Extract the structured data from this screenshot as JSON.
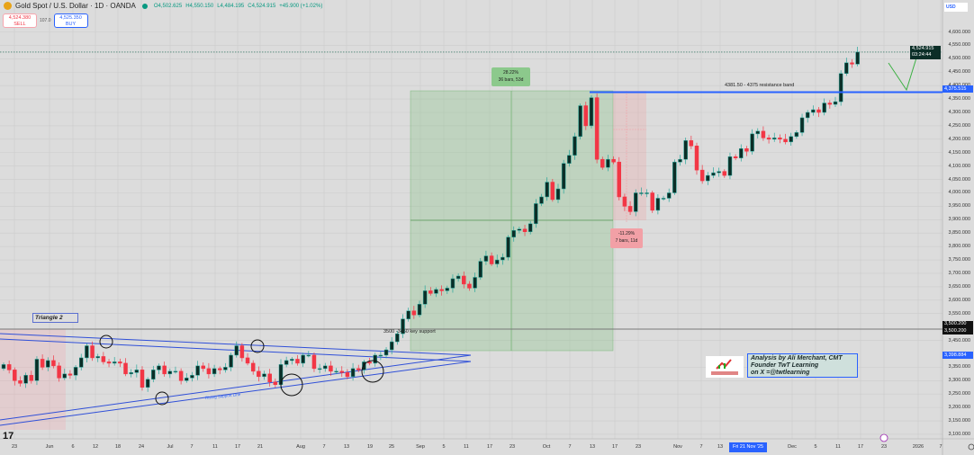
{
  "header": {
    "title": "Gold Spot / U.S. Dollar · 1D · OANDA",
    "open": "O4,502.625",
    "high": "H4,550.150",
    "low": "L4,484.195",
    "close": "C4,524.915",
    "change": "+45.900 (+1.02%)"
  },
  "trade": {
    "sell_price": "4,524.380",
    "sell_label": "SELL",
    "spread": "107.0",
    "buy_price": "4,525.350",
    "buy_label": "BUY"
  },
  "currency": "USD",
  "badges": {
    "last_price": "4,524.915",
    "countdown": "03:24:44",
    "resistance_price": "4,375.515",
    "line_price_1": "3,500.200",
    "line_price_2": "3,500.200",
    "support_price": "3,398.884"
  },
  "crosshair_date": "Fri 21 Nov '25",
  "annotations": {
    "resistance": "4381.50 - 4375 resistance band",
    "support": "3500 -3450 key support",
    "rising": "Rising Support Line",
    "triangle": "Triangle 2",
    "up_pct": "28.22%",
    "up_bars": "36 bars, 53d",
    "down_pct": "-11.29%",
    "down_bars": "7 bars, 11d",
    "credit_1": "Analysis by Ali Merchant, CMT",
    "credit_2": "Founder TwT Learning",
    "credit_3": "on X =@twtlearning",
    "logo_text": "TwT Learning.com",
    "tv_logo": "17"
  },
  "colors": {
    "up": "#26a69a",
    "up_body": "#0b2e27",
    "down": "#f23645",
    "resistance": "#2962ff",
    "bg": "#dcdcdc"
  },
  "chart_data": {
    "type": "candlestick",
    "title": "Gold Spot / U.S. Dollar · 1D · OANDA",
    "ylim": [
      3100,
      4650
    ],
    "yticks": [
      4600,
      4550,
      4500,
      4450,
      4400,
      4350,
      4300,
      4250,
      4200,
      4150,
      4100,
      4050,
      4000,
      3950,
      3900,
      3850,
      3800,
      3750,
      3700,
      3650,
      3600,
      3550,
      3450,
      3350,
      3300,
      3250,
      3200,
      3150,
      3100
    ],
    "xticks": [
      "23",
      "Jun",
      "6",
      "12",
      "18",
      "24",
      "Jul",
      "7",
      "11",
      "17",
      "21",
      "Aug",
      "7",
      "13",
      "19",
      "25",
      "Sep",
      "5",
      "11",
      "17",
      "23",
      "Oct",
      "7",
      "13",
      "17",
      "23",
      "Nov",
      "7",
      "13",
      "Dec",
      "5",
      "11",
      "17",
      "23",
      "2026",
      "7"
    ],
    "closes": [
      3360,
      3340,
      3300,
      3290,
      3320,
      3300,
      3380,
      3350,
      3375,
      3355,
      3310,
      3325,
      3320,
      3350,
      3385,
      3430,
      3385,
      3390,
      3370,
      3365,
      3370,
      3365,
      3325,
      3330,
      3340,
      3275,
      3305,
      3340,
      3355,
      3325,
      3335,
      3335,
      3300,
      3310,
      3320,
      3355,
      3345,
      3325,
      3345,
      3340,
      3350,
      3395,
      3430,
      3385,
      3365,
      3335,
      3315,
      3325,
      3295,
      3285,
      3360,
      3375,
      3380,
      3365,
      3395,
      3395,
      3345,
      3345,
      3355,
      3335,
      3335,
      3330,
      3315,
      3345,
      3340,
      3370,
      3365,
      3395,
      3395,
      3415,
      3445,
      3475,
      3530,
      3560,
      3545,
      3585,
      3635,
      3625,
      3640,
      3635,
      3645,
      3680,
      3690,
      3660,
      3645,
      3685,
      3745,
      3765,
      3735,
      3750,
      3760,
      3835,
      3860,
      3865,
      3855,
      3885,
      3960,
      3985,
      4040,
      3975,
      4015,
      4110,
      4140,
      4210,
      4325,
      4250,
      4355,
      4125,
      4095,
      4125,
      4115,
      3985,
      3950,
      3930,
      4000,
      4000,
      4000,
      3935,
      3980,
      3980,
      4000,
      4115,
      4125,
      4195,
      4175,
      4085,
      4045,
      4065,
      4075,
      4080,
      4065,
      4135,
      4130,
      4165,
      4155,
      4220,
      4230,
      4205,
      4200,
      4205,
      4200,
      4190,
      4210,
      4225,
      4280,
      4300,
      4310,
      4300,
      4335,
      4330,
      4340,
      4445,
      4485,
      4480,
      4524.915
    ],
    "first_open": 3345,
    "levels": {
      "resistance": 4375.515,
      "support": 3500.2,
      "last": 4524.915
    }
  }
}
